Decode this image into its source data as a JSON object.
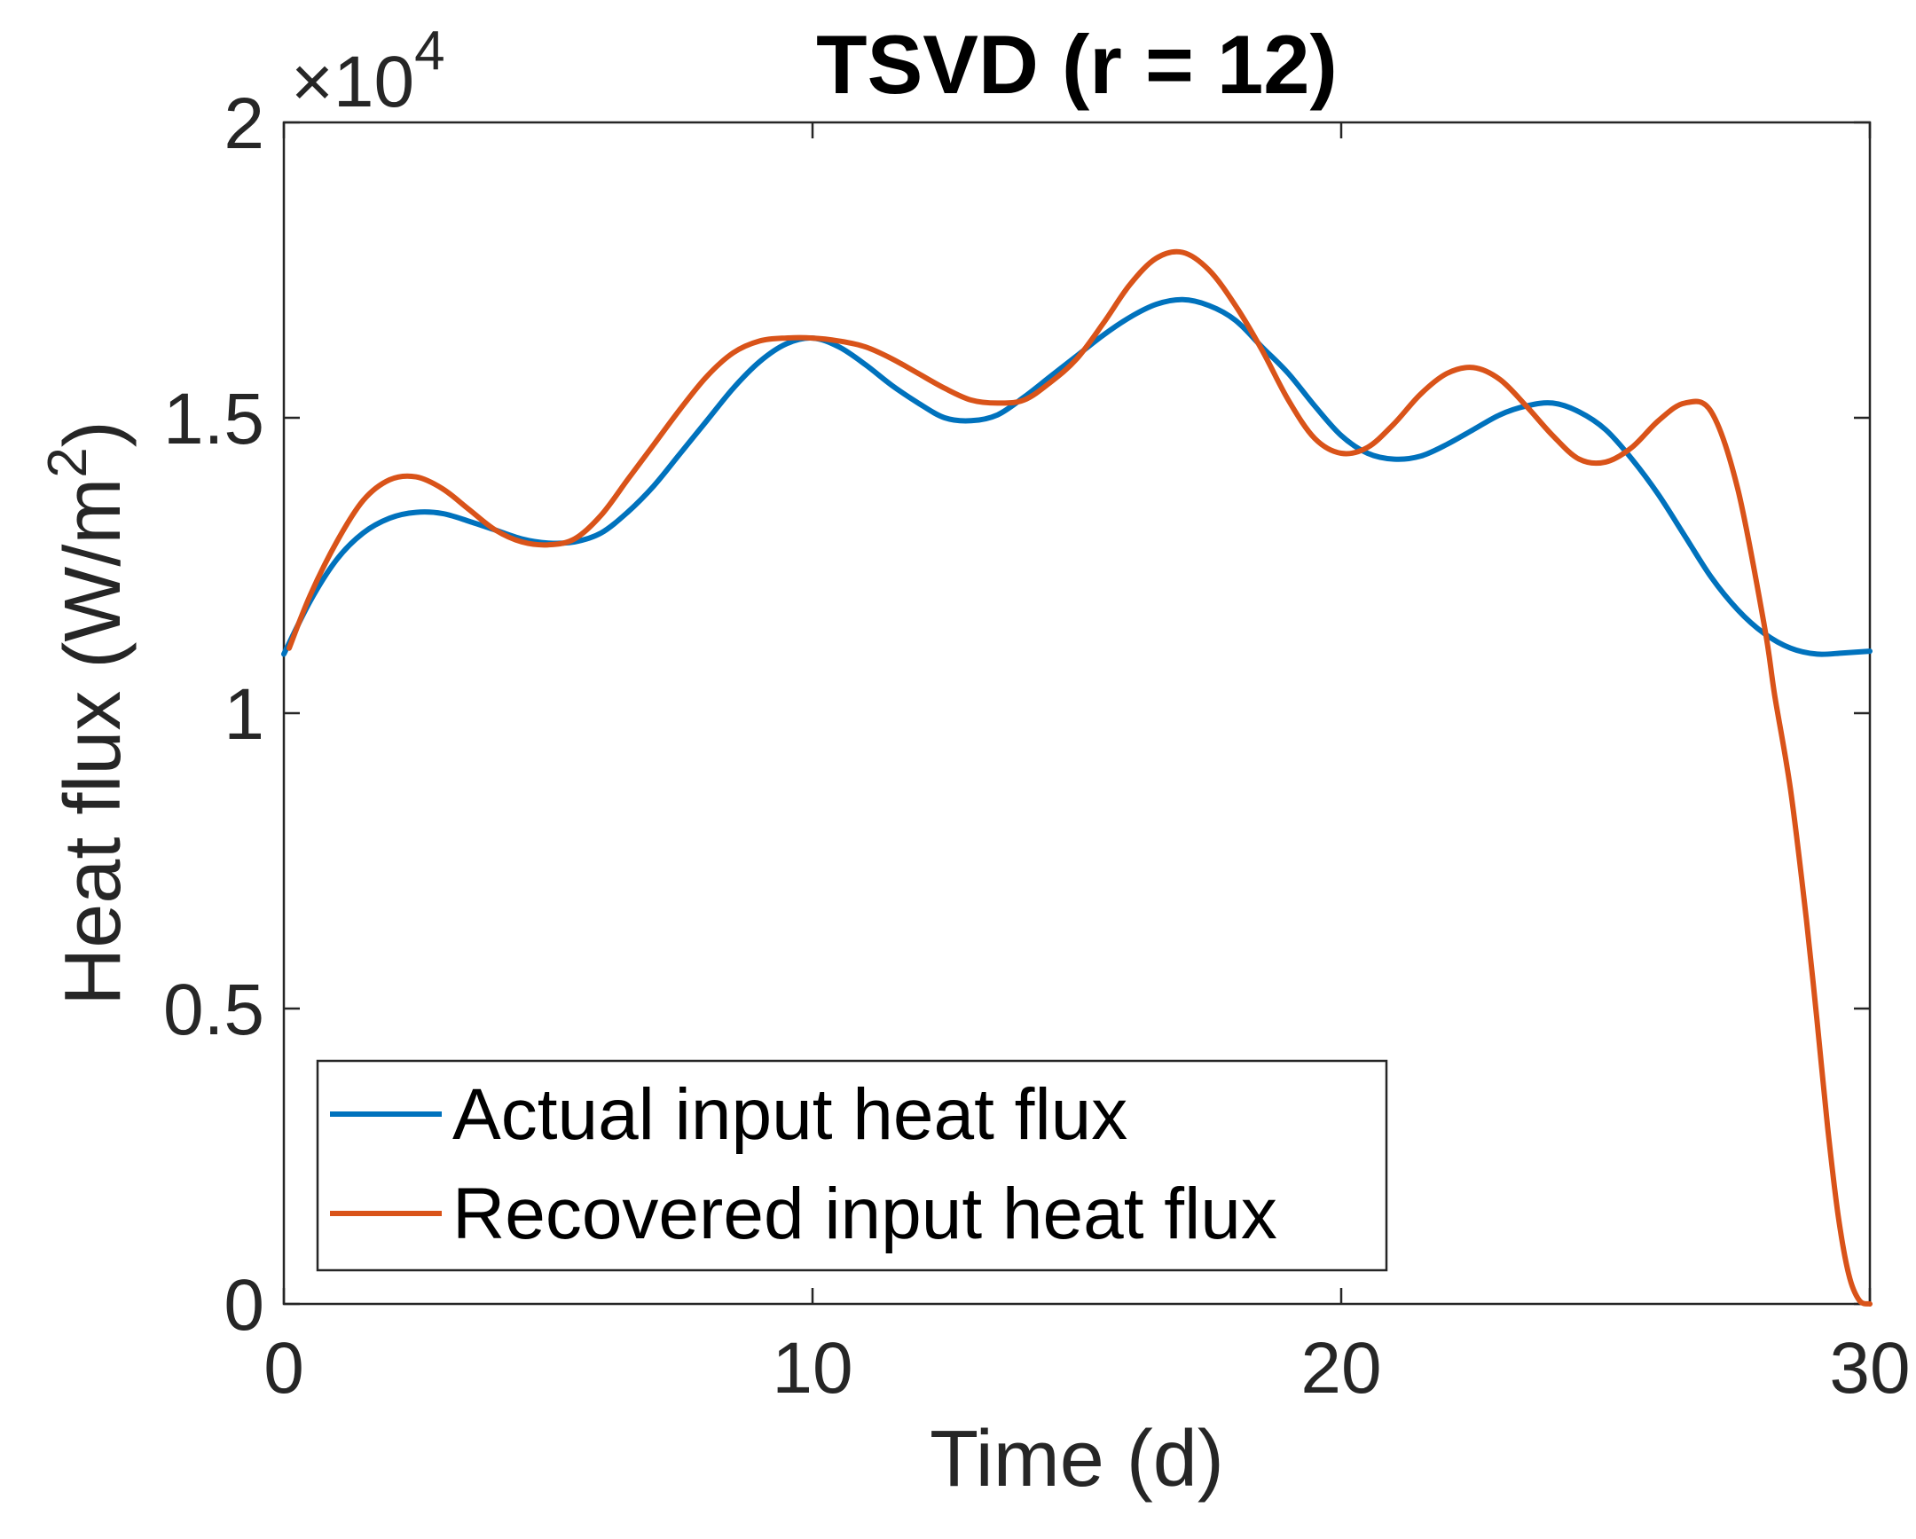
{
  "chart_data": {
    "type": "line",
    "title": "TSVD (r = 12)",
    "xlabel": "Time (d)",
    "ylabel_main": "Heat flux (W/m",
    "ylabel_sup": "2",
    "ylabel_close": ")",
    "y_exponent_prefix": "×10",
    "y_exponent_power": "4",
    "xlim": [
      0,
      30
    ],
    "ylim": [
      0,
      20000
    ],
    "xticks": [
      0,
      10,
      20,
      30
    ],
    "xtick_labels": [
      "0",
      "10",
      "20",
      "30"
    ],
    "yticks": [
      0,
      5000,
      10000,
      15000,
      20000
    ],
    "ytick_labels": [
      "0",
      "0.5",
      "1",
      "1.5",
      "2"
    ],
    "grid": false,
    "legend_position": "bottom-left",
    "series": [
      {
        "name": "Actual input heat flux",
        "color": "#0072BD",
        "x": [
          0,
          0.5,
          1,
          1.5,
          2,
          2.5,
          3,
          3.5,
          4,
          4.5,
          5,
          5.5,
          6,
          6.5,
          7,
          7.5,
          8,
          8.5,
          9,
          9.5,
          10,
          10.5,
          11,
          11.5,
          12,
          12.5,
          13,
          13.5,
          14,
          14.5,
          15,
          15.5,
          16,
          16.5,
          17,
          17.5,
          18,
          18.5,
          19,
          19.5,
          20,
          20.5,
          21,
          21.5,
          22,
          22.5,
          23,
          23.5,
          24,
          24.5,
          25,
          25.5,
          26,
          26.5,
          27,
          27.5,
          28,
          28.5,
          29,
          29.5,
          30
        ],
        "y": [
          11000,
          11900,
          12600,
          13050,
          13300,
          13400,
          13380,
          13250,
          13100,
          12950,
          12880,
          12900,
          13050,
          13400,
          13850,
          14400,
          14950,
          15500,
          15950,
          16250,
          16350,
          16200,
          15900,
          15550,
          15250,
          15000,
          14950,
          15050,
          15350,
          15700,
          16050,
          16400,
          16700,
          16920,
          17000,
          16900,
          16650,
          16200,
          15750,
          15200,
          14700,
          14400,
          14300,
          14350,
          14550,
          14800,
          15050,
          15200,
          15250,
          15100,
          14800,
          14300,
          13700,
          13000,
          12300,
          11750,
          11350,
          11100,
          11000,
          11020,
          11050
        ]
      },
      {
        "name": "Recovered input heat flux",
        "color": "#D95319",
        "x": [
          0.1,
          0.5,
          1,
          1.5,
          2,
          2.5,
          3,
          3.5,
          4,
          4.5,
          5,
          5.5,
          6,
          6.5,
          7,
          7.5,
          8,
          8.5,
          9,
          9.5,
          10,
          10.5,
          11,
          11.5,
          12,
          12.5,
          13,
          13.5,
          14,
          14.5,
          15,
          15.5,
          16,
          16.5,
          17,
          17.5,
          18,
          18.5,
          19,
          19.5,
          20,
          20.5,
          21,
          21.5,
          22,
          22.5,
          23,
          23.5,
          24,
          24.5,
          25,
          25.5,
          26,
          26.5,
          27,
          27.5,
          28,
          28.2,
          28.5,
          28.8,
          29,
          29.2,
          29.4,
          29.6,
          29.8,
          30
        ],
        "y": [
          11100,
          12000,
          12900,
          13600,
          13950,
          14000,
          13800,
          13450,
          13100,
          12900,
          12850,
          12950,
          13350,
          13950,
          14550,
          15150,
          15700,
          16100,
          16300,
          16350,
          16350,
          16300,
          16200,
          16000,
          15750,
          15500,
          15300,
          15250,
          15300,
          15600,
          16000,
          16600,
          17250,
          17700,
          17800,
          17500,
          16900,
          16150,
          15300,
          14650,
          14400,
          14500,
          14900,
          15400,
          15750,
          15850,
          15650,
          15200,
          14700,
          14300,
          14250,
          14500,
          14950,
          15250,
          15100,
          13800,
          11500,
          10300,
          8700,
          6500,
          4800,
          3000,
          1500,
          500,
          60,
          0
        ]
      }
    ]
  }
}
